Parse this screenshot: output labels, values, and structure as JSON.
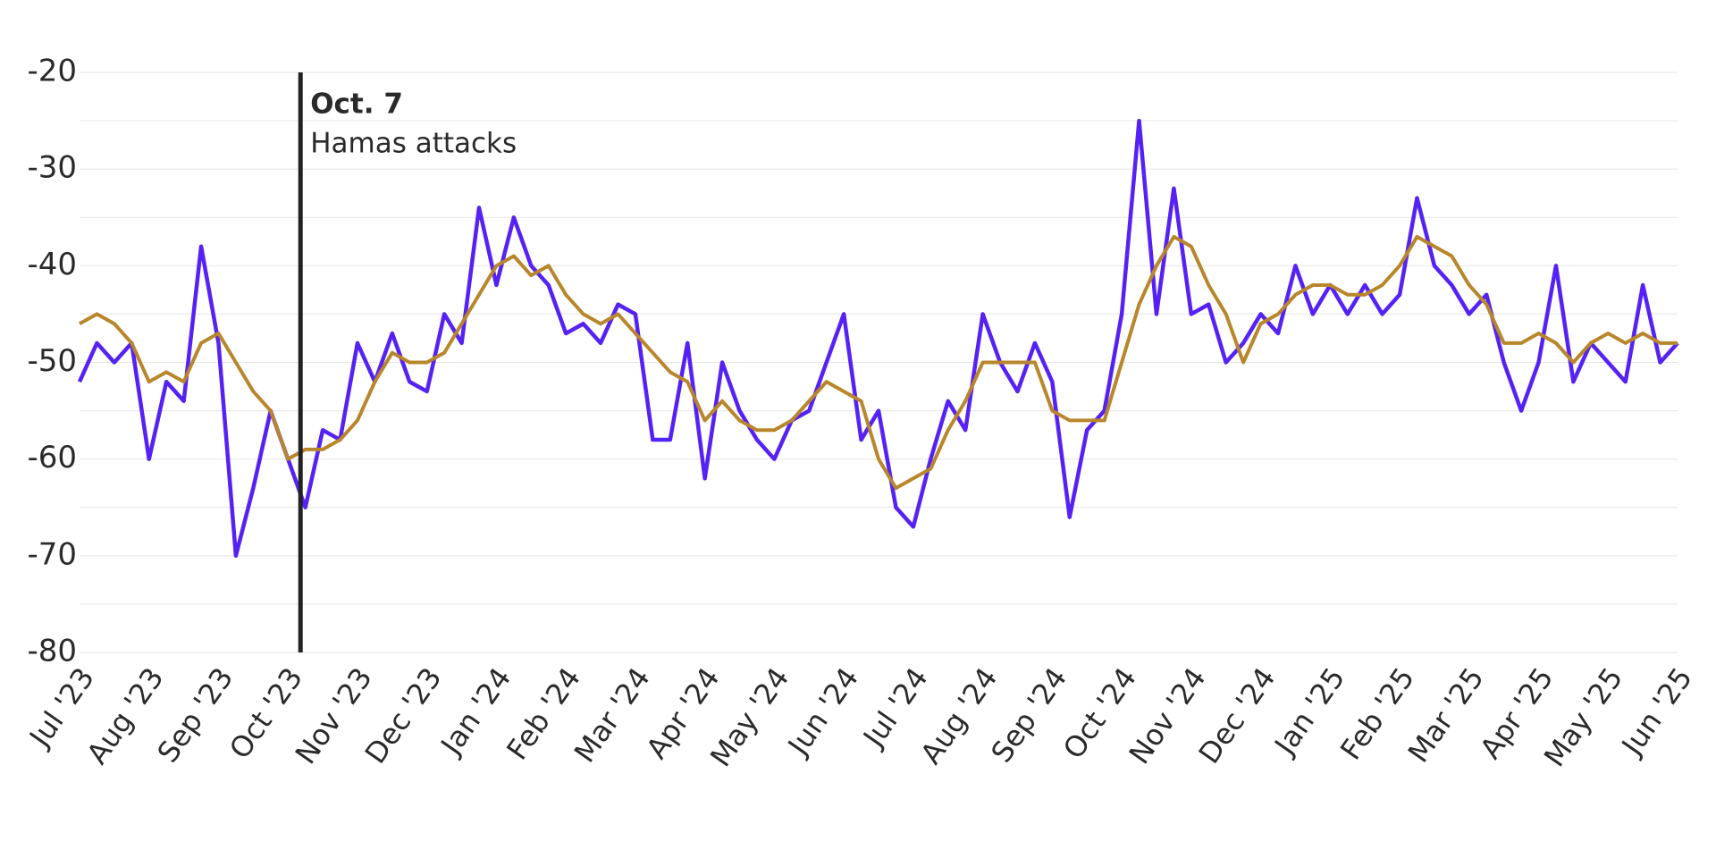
{
  "chart_data": {
    "type": "line",
    "categories": [
      "Jul '23",
      null,
      null,
      null,
      "Aug '23",
      null,
      null,
      null,
      "Sep '23",
      null,
      null,
      null,
      "Oct '23",
      null,
      null,
      null,
      "Nov '23",
      null,
      null,
      null,
      "Dec '23",
      null,
      null,
      null,
      "Jan '24",
      null,
      null,
      null,
      "Feb '24",
      null,
      null,
      null,
      "Mar '24",
      null,
      null,
      null,
      "Apr '24",
      null,
      null,
      null,
      "May '24",
      null,
      null,
      null,
      "Jun '24",
      null,
      null,
      null,
      "Jul '24",
      null,
      null,
      null,
      "Aug '24",
      null,
      null,
      null,
      "Sep '24",
      null,
      null,
      null,
      "Oct '24",
      null,
      null,
      null,
      "Nov '24",
      null,
      null,
      null,
      "Dec '24",
      null,
      null,
      null,
      "Jan '25",
      null,
      null,
      null,
      "Feb '25",
      null,
      null,
      null,
      "Mar '25",
      null,
      null,
      null,
      "Apr '25",
      null,
      null,
      null,
      "May '25",
      null,
      null,
      null,
      "Jun '25"
    ],
    "series": [
      {
        "color": "#5522f5",
        "values": [
          -52,
          -48,
          -50,
          -48,
          -60,
          -52,
          -54,
          -38,
          -48,
          -70,
          -63,
          -55,
          -60,
          -65,
          -57,
          -58,
          -48,
          -52,
          -47,
          -52,
          -53,
          -45,
          -48,
          -34,
          -42,
          -35,
          -40,
          -42,
          -47,
          -46,
          -48,
          -44,
          -45,
          -58,
          -58,
          -48,
          -62,
          -50,
          -55,
          -58,
          -60,
          -56,
          -55,
          -50,
          -45,
          -58,
          -55,
          -65,
          -67,
          -60,
          -54,
          -57,
          -45,
          -50,
          -53,
          -48,
          -52,
          -66,
          -57,
          -55,
          -45,
          -25,
          -45,
          -32,
          -45,
          -44,
          -50,
          -48,
          -45,
          -47,
          -40,
          -45,
          -42,
          -45,
          -42,
          -45,
          -43,
          -33,
          -40,
          -42,
          -45,
          -43,
          -50,
          -55,
          -50,
          -40,
          -52,
          -48,
          -50,
          -52,
          -42,
          -50,
          -48
        ]
      },
      {
        "color": "#b8862b",
        "values": [
          -46,
          -45,
          -46,
          -48,
          -52,
          -51,
          -52,
          -48,
          -47,
          -50,
          -53,
          -55,
          -60,
          -59,
          -59,
          -58,
          -56,
          -52,
          -49,
          -50,
          -50,
          -49,
          -46,
          -43,
          -40,
          -39,
          -41,
          -40,
          -43,
          -45,
          -46,
          -45,
          -47,
          -49,
          -51,
          -52,
          -56,
          -54,
          -56,
          -57,
          -57,
          -56,
          -54,
          -52,
          -53,
          -54,
          -60,
          -63,
          -62,
          -61,
          -57,
          -54,
          -50,
          -50,
          -50,
          -50,
          -55,
          -56,
          -56,
          -56,
          -50,
          -44,
          -40,
          -37,
          -38,
          -42,
          -45,
          -50,
          -46,
          -45,
          -43,
          -42,
          -42,
          -43,
          -43,
          -42,
          -40,
          -37,
          -38,
          -39,
          -42,
          -44,
          -48,
          -48,
          -47,
          -48,
          -50,
          -48,
          -47,
          -48,
          -47,
          -48,
          -48
        ]
      }
    ],
    "ylim": [
      -80,
      -20
    ],
    "yticks": [
      -20,
      -30,
      -40,
      -50,
      -60,
      -70,
      -80
    ],
    "grid_yticks": [
      -20,
      -25,
      -30,
      -35,
      -40,
      -45,
      -50,
      -55,
      -60,
      -65,
      -70,
      -75,
      -80
    ],
    "grid": true,
    "annotation": {
      "label": "Oct. 7",
      "text": "Hamas attacks",
      "category": "Oct '23"
    }
  }
}
